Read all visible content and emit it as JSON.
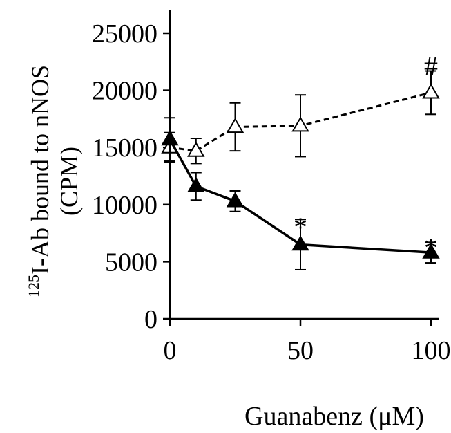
{
  "chart_data": {
    "type": "line",
    "xlabel": "Guanabenz (μM)",
    "ylabel_sup": "125",
    "ylabel_main": "I-Ab bound to nNOS",
    "ylabel_unit": "(CPM)",
    "xlim": [
      0,
      100
    ],
    "ylim": [
      0,
      25000
    ],
    "xticks": [
      0,
      50,
      100
    ],
    "yticks": [
      0,
      5000,
      10000,
      15000,
      20000,
      25000
    ],
    "grid": false,
    "series": [
      {
        "style": "dashed",
        "marker": "open-triangle",
        "x": [
          0,
          10,
          25,
          50,
          100
        ],
        "y": [
          15000,
          14700,
          16800,
          16900,
          19800
        ],
        "err": [
          1300,
          1100,
          2100,
          2700,
          1900
        ]
      },
      {
        "style": "solid",
        "marker": "filled-triangle",
        "x": [
          0,
          10,
          25,
          50,
          100
        ],
        "y": [
          15700,
          11600,
          10300,
          6500,
          5800
        ],
        "err": [
          1900,
          1200,
          900,
          2200,
          900
        ]
      }
    ],
    "annotations": [
      {
        "text": "#",
        "x": 100,
        "y": 21900
      },
      {
        "text": "*",
        "x": 50,
        "y": 8900
      },
      {
        "text": "*",
        "x": 100,
        "y": 7100
      }
    ]
  },
  "colors": {
    "axis": "#000000",
    "series": "#000000",
    "background": "#ffffff"
  }
}
